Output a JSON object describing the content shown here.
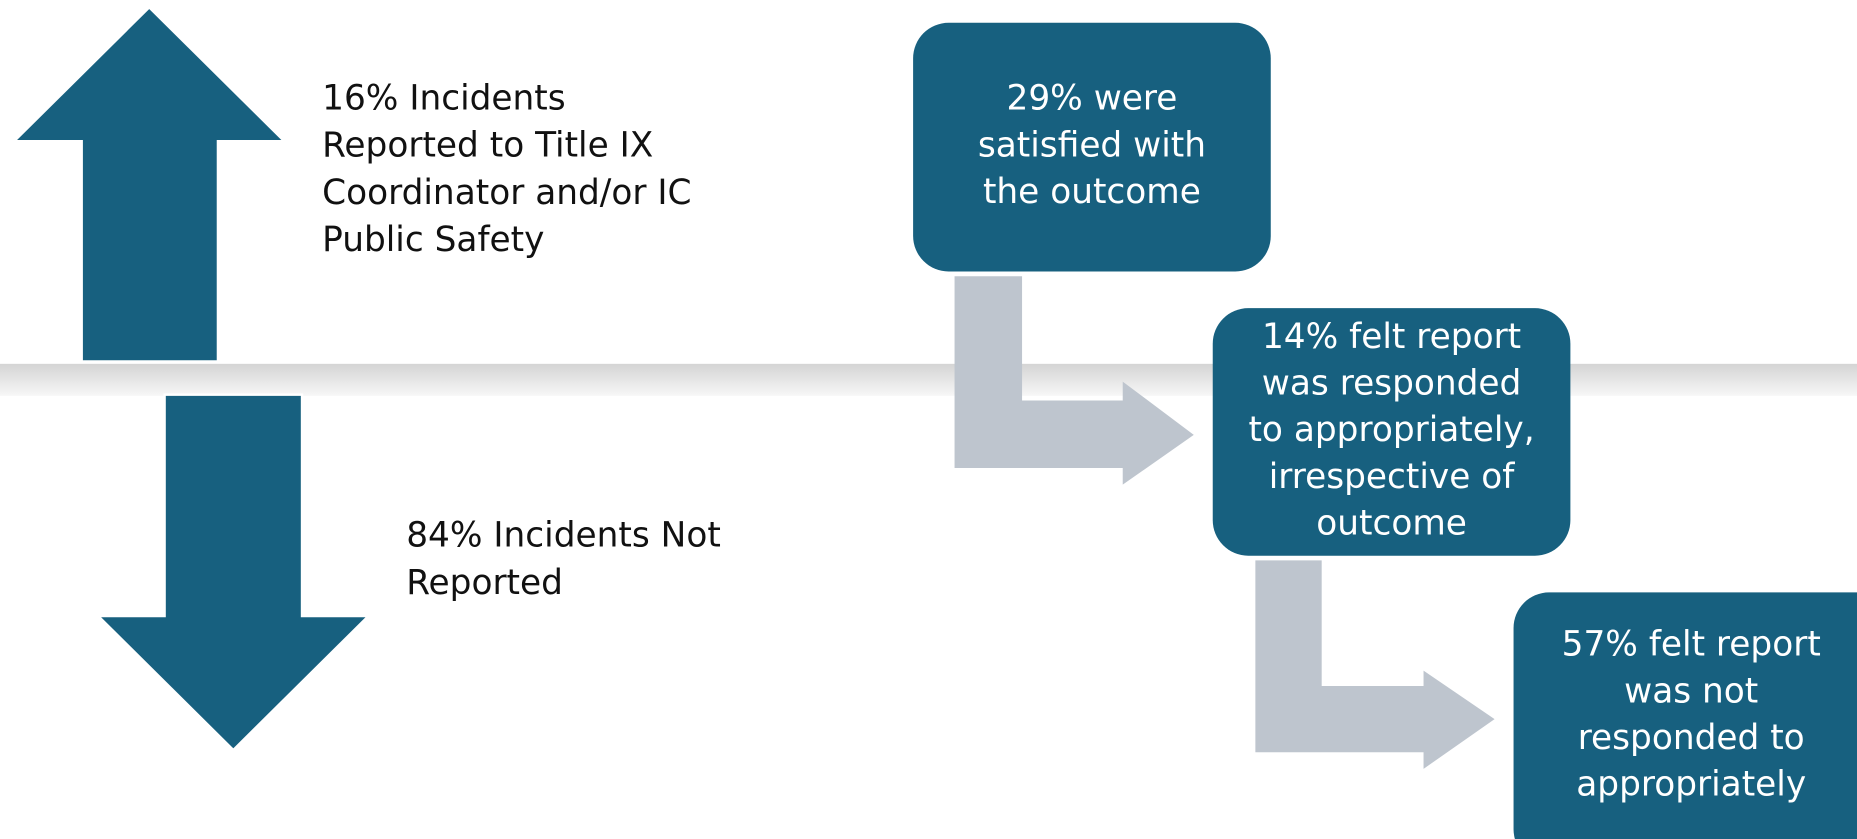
{
  "arrows": [
    {
      "direction": "up",
      "lines": [
        "16% Incidents",
        "Reported to Title IX",
        "Coordinator and/or IC",
        "Public Safety"
      ]
    },
    {
      "direction": "down",
      "lines": [
        "84% Incidents Not",
        "Reported"
      ]
    }
  ],
  "boxes": [
    {
      "lines": [
        "29% were",
        "satisfied with",
        "the outcome"
      ]
    },
    {
      "lines": [
        "14% felt report",
        "was responded",
        "to appropriately,",
        "irrespective of",
        "outcome"
      ]
    },
    {
      "lines": [
        "57% felt report",
        "was not",
        "responded to",
        "appropriately"
      ]
    }
  ]
}
